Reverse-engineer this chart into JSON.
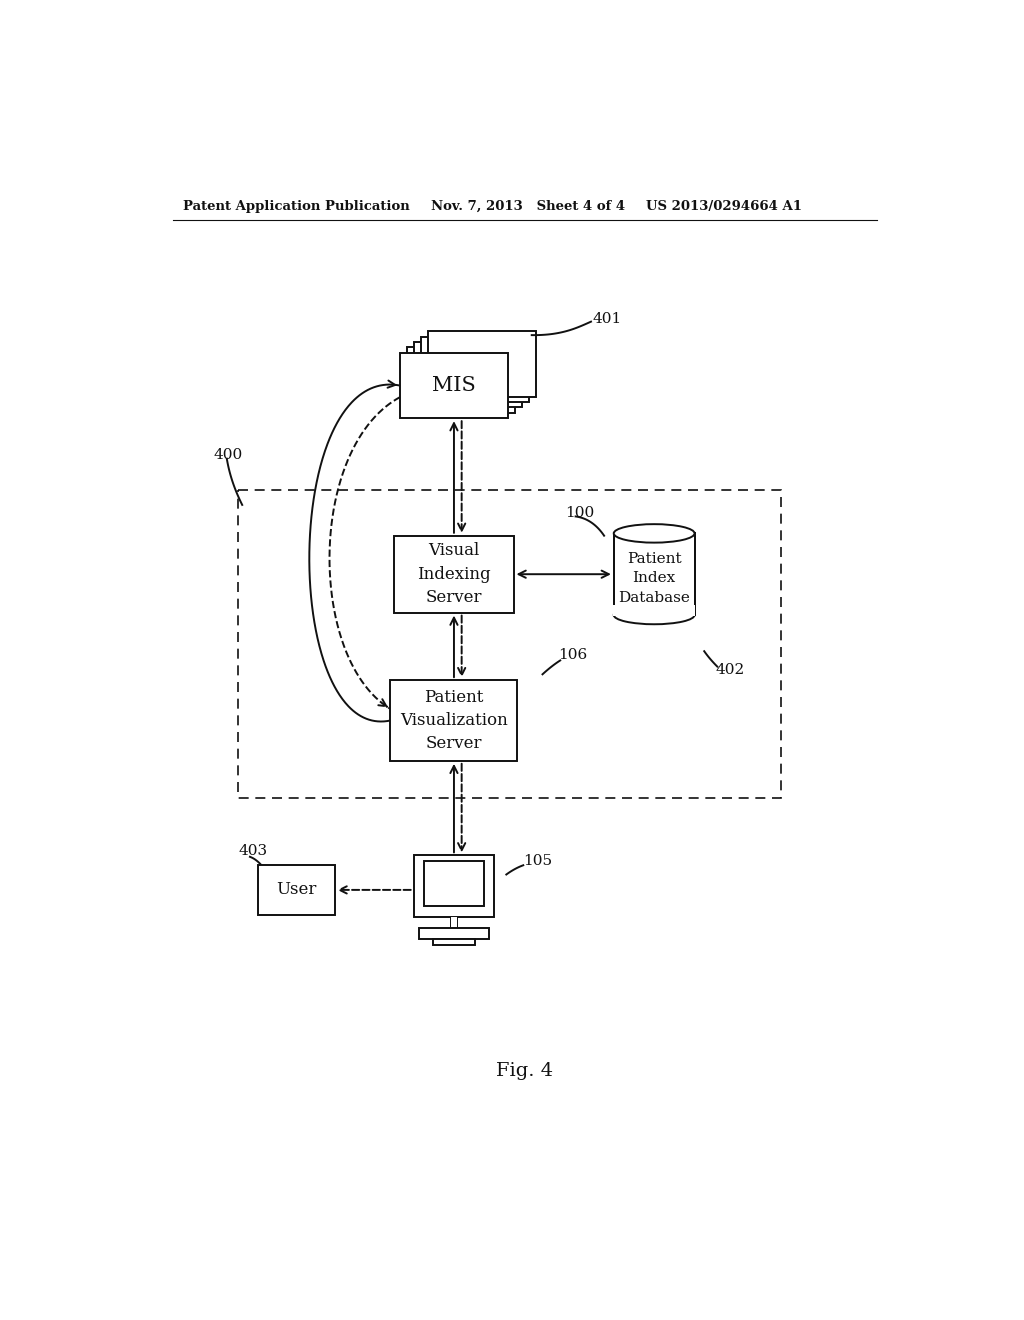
{
  "bg_color": "#ffffff",
  "line_color": "#111111",
  "header_left": "Patent Application Publication",
  "header_mid": "Nov. 7, 2013   Sheet 4 of 4",
  "header_right": "US 2013/0294664 A1",
  "footer_label": "Fig. 4",
  "label_400": "400",
  "label_401": "401",
  "label_100": "100",
  "label_402": "402",
  "label_106": "106",
  "label_403": "403",
  "label_105": "105",
  "mis_label": "MIS",
  "vis_server_label": "Visual\nIndexing\nServer",
  "pat_vis_label": "Patient\nVisualization\nServer",
  "database_label": "Patient\nIndex\nDatabase",
  "user_label": "User",
  "lw": 1.4,
  "header_lw": 0.8,
  "fig_width": 10.24,
  "fig_height": 13.2,
  "dpi": 100
}
